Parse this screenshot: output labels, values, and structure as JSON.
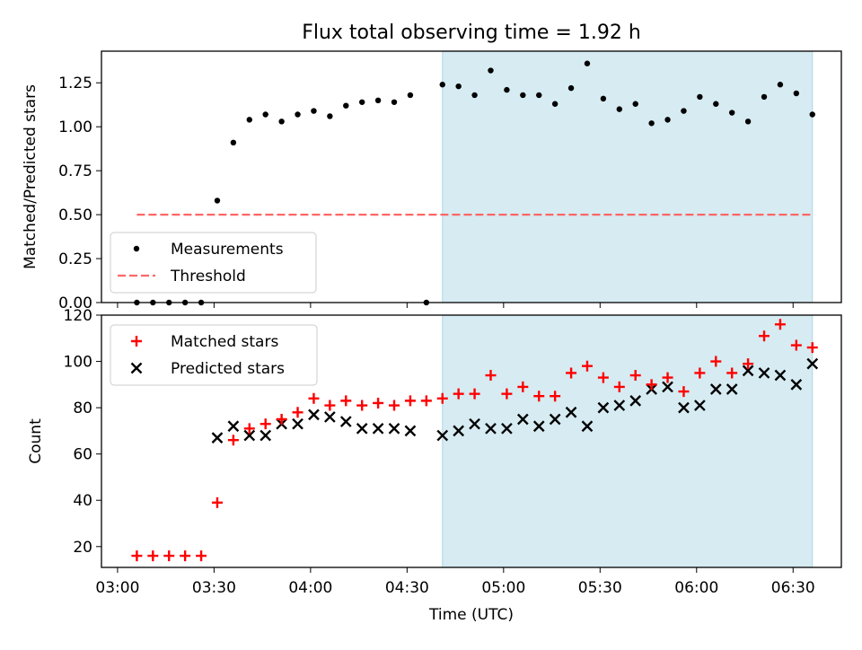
{
  "figure": {
    "title": "Flux total observing time = 1.92 h"
  },
  "colors": {
    "measurements": "#000000",
    "threshold": "#ff6666",
    "matched": "#ff0000",
    "predicted": "#000000",
    "shade": "#add8e6"
  },
  "chart_data": [
    {
      "type": "scatter",
      "panel": "top",
      "title": "Flux total observing time = 1.92 h",
      "xlabel": "",
      "ylabel": "Matched/Predicted stars",
      "xlim": [
        "02:55",
        "06:45"
      ],
      "ylim": [
        0,
        1.43
      ],
      "yticks": [
        "0.00",
        "0.25",
        "0.50",
        "0.75",
        "1.00",
        "1.25"
      ],
      "shaded_range": [
        "04:41",
        "06:36"
      ],
      "legend_position": "lower-left",
      "series": [
        {
          "name": "Measurements",
          "marker": "dot",
          "points": [
            [
              "03:06",
              0.0
            ],
            [
              "03:11",
              0.0
            ],
            [
              "03:16",
              0.0
            ],
            [
              "03:21",
              0.0
            ],
            [
              "03:26",
              0.0
            ],
            [
              "03:31",
              0.58
            ],
            [
              "03:36",
              0.91
            ],
            [
              "03:41",
              1.04
            ],
            [
              "03:46",
              1.07
            ],
            [
              "03:51",
              1.03
            ],
            [
              "03:56",
              1.07
            ],
            [
              "04:01",
              1.09
            ],
            [
              "04:06",
              1.06
            ],
            [
              "04:11",
              1.12
            ],
            [
              "04:16",
              1.14
            ],
            [
              "04:21",
              1.15
            ],
            [
              "04:26",
              1.14
            ],
            [
              "04:31",
              1.18
            ],
            [
              "04:36",
              0.0
            ],
            [
              "04:41",
              1.24
            ],
            [
              "04:46",
              1.23
            ],
            [
              "04:51",
              1.18
            ],
            [
              "04:56",
              1.32
            ],
            [
              "05:01",
              1.21
            ],
            [
              "05:06",
              1.18
            ],
            [
              "05:11",
              1.18
            ],
            [
              "05:16",
              1.13
            ],
            [
              "05:21",
              1.22
            ],
            [
              "05:26",
              1.36
            ],
            [
              "05:31",
              1.16
            ],
            [
              "05:36",
              1.1
            ],
            [
              "05:41",
              1.13
            ],
            [
              "05:46",
              1.02
            ],
            [
              "05:51",
              1.04
            ],
            [
              "05:56",
              1.09
            ],
            [
              "06:01",
              1.17
            ],
            [
              "06:06",
              1.13
            ],
            [
              "06:11",
              1.08
            ],
            [
              "06:16",
              1.03
            ],
            [
              "06:21",
              1.17
            ],
            [
              "06:26",
              1.24
            ],
            [
              "06:31",
              1.19
            ],
            [
              "06:36",
              1.07
            ]
          ]
        },
        {
          "name": "Threshold",
          "style": "dashed-line",
          "points": [
            [
              "03:06",
              0.5
            ],
            [
              "06:36",
              0.5
            ]
          ]
        }
      ]
    },
    {
      "type": "scatter",
      "panel": "bottom",
      "xlabel": "Time (UTC)",
      "ylabel": "Count",
      "xlim": [
        "02:55",
        "06:45"
      ],
      "ylim": [
        11,
        120
      ],
      "yticks": [
        "20",
        "40",
        "60",
        "80",
        "100",
        "120"
      ],
      "xticks": [
        "03:00",
        "03:30",
        "04:00",
        "04:30",
        "05:00",
        "05:30",
        "06:00",
        "06:30"
      ],
      "shaded_range": [
        "04:41",
        "06:36"
      ],
      "legend_position": "upper-left",
      "times": [
        "03:06",
        "03:11",
        "03:16",
        "03:21",
        "03:26",
        "03:31",
        "03:36",
        "03:41",
        "03:46",
        "03:51",
        "03:56",
        "04:01",
        "04:06",
        "04:11",
        "04:16",
        "04:21",
        "04:26",
        "04:31",
        "04:36",
        "04:41",
        "04:46",
        "04:51",
        "04:56",
        "05:01",
        "05:06",
        "05:11",
        "05:16",
        "05:21",
        "05:26",
        "05:31",
        "05:36",
        "05:41",
        "05:46",
        "05:51",
        "05:56",
        "06:01",
        "06:06",
        "06:11",
        "06:16",
        "06:21",
        "06:26",
        "06:31",
        "06:36"
      ],
      "series": [
        {
          "name": "Matched stars",
          "marker": "plus",
          "values": [
            16,
            16,
            16,
            16,
            16,
            39,
            66,
            71,
            73,
            75,
            78,
            84,
            81,
            83,
            81,
            82,
            81,
            83,
            83,
            84,
            86,
            86,
            94,
            86,
            89,
            85,
            85,
            95,
            98,
            93,
            89,
            94,
            90,
            93,
            87,
            95,
            100,
            95,
            99,
            111,
            116,
            107,
            106
          ]
        },
        {
          "name": "Predicted stars",
          "marker": "x",
          "values": [
            null,
            null,
            null,
            null,
            null,
            67,
            72,
            68,
            68,
            73,
            73,
            77,
            76,
            74,
            71,
            71,
            71,
            70,
            null,
            68,
            70,
            73,
            71,
            71,
            75,
            72,
            75,
            78,
            72,
            80,
            81,
            83,
            88,
            89,
            80,
            81,
            88,
            88,
            96,
            95,
            94,
            90,
            99
          ]
        }
      ]
    }
  ]
}
